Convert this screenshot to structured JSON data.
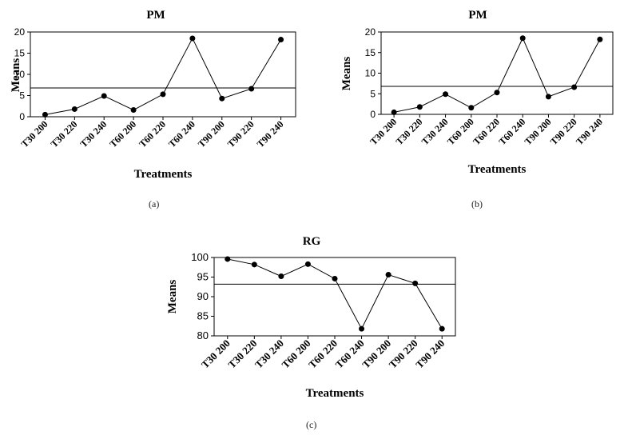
{
  "chart_data": [
    {
      "type": "line",
      "title": "PM",
      "xlabel": "Treatments",
      "ylabel": "Means",
      "categories": [
        "T30 200",
        "T30 220",
        "T30 240",
        "T60 200",
        "T60 220",
        "T60 240",
        "T90 200",
        "T90 220",
        "T90 240"
      ],
      "values": [
        0.5,
        1.8,
        4.9,
        1.6,
        5.3,
        18.5,
        4.3,
        6.6,
        18.2
      ],
      "ylim": [
        0,
        20
      ],
      "yticks": [
        0,
        5,
        10,
        15,
        20
      ],
      "reference_line": 6.8,
      "caption": "(a)"
    },
    {
      "type": "line",
      "title": "PM",
      "xlabel": "Treatments",
      "ylabel": "Means",
      "categories": [
        "T30 200",
        "T30 220",
        "T30 240",
        "T60 200",
        "T60 220",
        "T60 240",
        "T90 200",
        "T90 220",
        "T90 240"
      ],
      "values": [
        0.5,
        1.8,
        4.9,
        1.6,
        5.3,
        18.5,
        4.3,
        6.6,
        18.2
      ],
      "ylim": [
        0,
        20
      ],
      "yticks": [
        0,
        5,
        10,
        15,
        20
      ],
      "reference_line": 6.8,
      "caption": "(b)"
    },
    {
      "type": "line",
      "title": "RG",
      "xlabel": "Treatments",
      "ylabel": "Means",
      "categories": [
        "T30 200",
        "T30 220",
        "T30 240",
        "T60 200",
        "T60 220",
        "T60 240",
        "T90 200",
        "T90 220",
        "T90 240"
      ],
      "values": [
        99.6,
        98.2,
        95.2,
        98.3,
        94.6,
        81.8,
        95.6,
        93.4,
        81.8
      ],
      "ylim": [
        80,
        100
      ],
      "yticks": [
        80,
        85,
        90,
        95,
        100
      ],
      "reference_line": 93.2,
      "caption": "(c)"
    }
  ]
}
